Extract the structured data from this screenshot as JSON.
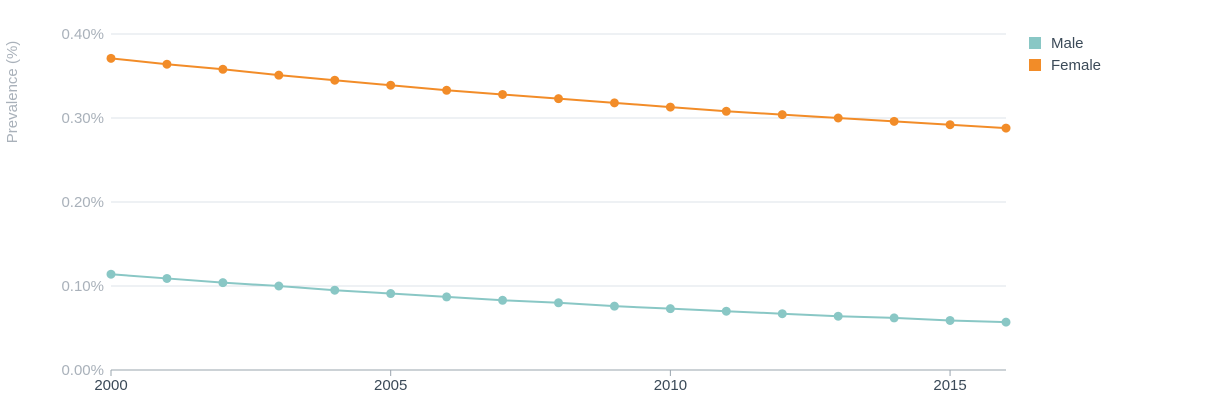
{
  "chart_data": {
    "type": "line",
    "title": "",
    "xlabel": "",
    "ylabel": "Prevalence (%)",
    "x": [
      2000,
      2001,
      2002,
      2003,
      2004,
      2005,
      2006,
      2007,
      2008,
      2009,
      2010,
      2011,
      2012,
      2013,
      2014,
      2015,
      2016
    ],
    "xlim": [
      2000,
      2016
    ],
    "x_ticks": [
      2000,
      2005,
      2010,
      2015
    ],
    "x_tick_labels": [
      "2000",
      "2005",
      "2010",
      "2015"
    ],
    "ylim": [
      0,
      0.4
    ],
    "y_ticks": [
      0,
      0.1,
      0.2,
      0.3,
      0.4
    ],
    "y_tick_labels": [
      "0.00%",
      "0.10%",
      "0.20%",
      "0.30%",
      "0.40%"
    ],
    "grid": true,
    "legend_position": "top-right",
    "series": [
      {
        "name": "Male",
        "color": "#89c7c5",
        "values": [
          0.114,
          0.109,
          0.104,
          0.1,
          0.095,
          0.091,
          0.087,
          0.083,
          0.08,
          0.076,
          0.073,
          0.07,
          0.067,
          0.064,
          0.062,
          0.059,
          0.057
        ]
      },
      {
        "name": "Female",
        "color": "#f28c28",
        "values": [
          0.371,
          0.364,
          0.358,
          0.351,
          0.345,
          0.339,
          0.333,
          0.328,
          0.323,
          0.318,
          0.313,
          0.308,
          0.304,
          0.3,
          0.296,
          0.292,
          0.288
        ]
      }
    ]
  }
}
